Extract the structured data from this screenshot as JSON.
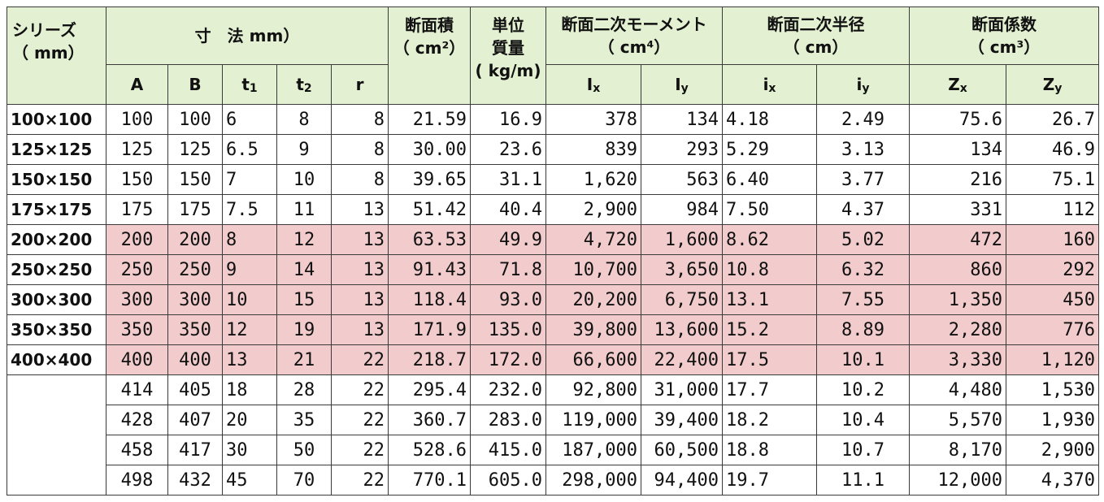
{
  "header": {
    "series_line1": "シリーズ",
    "series_line2": "（ mm）",
    "dimensions": "寸　法 mm）",
    "area_line1": "断面積",
    "area_line2": "（ cm²）",
    "mass_line1": "単位",
    "mass_line2": "質量",
    "mass_line3": "( kg/m)",
    "inertia_line1": "断面二次モーメント",
    "inertia_line2": "（ cm⁴）",
    "radius_line1": "断面二次半径",
    "radius_line2": "（ cm）",
    "modulus_line1": "断面係数",
    "modulus_line2": "（ cm³）",
    "cols": {
      "A": "A",
      "B": "B",
      "t1": "t",
      "t1_sub": "1",
      "t2": "t",
      "t2_sub": "2",
      "r": "r",
      "Ix": "I",
      "Ix_sub": "x",
      "Iy": "I",
      "Iy_sub": "y",
      "ix": "i",
      "ix_sub": "x",
      "iy": "i",
      "iy_sub": "y",
      "Zx": "Z",
      "Zx_sub": "x",
      "Zy": "Z",
      "Zy_sub": "y"
    }
  },
  "rows": [
    {
      "series": "100×100",
      "A": "100",
      "B": "100",
      "t1": "6",
      "t2": "8",
      "r": "8",
      "area": "21.59",
      "mass": "16.9",
      "Ix": "378",
      "Iy": "134",
      "ix": "4.18",
      "iy": "2.49",
      "Zx": "75.6",
      "Zy": "26.7"
    },
    {
      "series": "125×125",
      "A": "125",
      "B": "125",
      "t1": "6.5",
      "t2": "9",
      "r": "8",
      "area": "30.00",
      "mass": "23.6",
      "Ix": "839",
      "Iy": "293",
      "ix": "5.29",
      "iy": "3.13",
      "Zx": "134",
      "Zy": "46.9"
    },
    {
      "series": "150×150",
      "A": "150",
      "B": "150",
      "t1": "7",
      "t2": "10",
      "r": "8",
      "area": "39.65",
      "mass": "31.1",
      "Ix": "1,620",
      "Iy": "563",
      "ix": "6.40",
      "iy": "3.77",
      "Zx": "216",
      "Zy": "75.1"
    },
    {
      "series": "175×175",
      "A": "175",
      "B": "175",
      "t1": "7.5",
      "t2": "11",
      "r": "13",
      "area": "51.42",
      "mass": "40.4",
      "Ix": "2,900",
      "Iy": "984",
      "ix": "7.50",
      "iy": "4.37",
      "Zx": "331",
      "Zy": "112"
    },
    {
      "series": "200×200",
      "A": "200",
      "B": "200",
      "t1": "8",
      "t2": "12",
      "r": "13",
      "area": "63.53",
      "mass": "49.9",
      "Ix": "4,720",
      "Iy": "1,600",
      "ix": "8.62",
      "iy": "5.02",
      "Zx": "472",
      "Zy": "160"
    },
    {
      "series": "250×250",
      "A": "250",
      "B": "250",
      "t1": "9",
      "t2": "14",
      "r": "13",
      "area": "91.43",
      "mass": "71.8",
      "Ix": "10,700",
      "Iy": "3,650",
      "ix": "10.8",
      "iy": "6.32",
      "Zx": "860",
      "Zy": "292"
    },
    {
      "series": "300×300",
      "A": "300",
      "B": "300",
      "t1": "10",
      "t2": "15",
      "r": "13",
      "area": "118.4",
      "mass": "93.0",
      "Ix": "20,200",
      "Iy": "6,750",
      "ix": "13.1",
      "iy": "7.55",
      "Zx": "1,350",
      "Zy": "450"
    },
    {
      "series": "350×350",
      "A": "350",
      "B": "350",
      "t1": "12",
      "t2": "19",
      "r": "13",
      "area": "171.9",
      "mass": "135.0",
      "Ix": "39,800",
      "Iy": "13,600",
      "ix": "15.2",
      "iy": "8.89",
      "Zx": "2,280",
      "Zy": "776"
    },
    {
      "series": "400×400",
      "A": "400",
      "B": "400",
      "t1": "13",
      "t2": "21",
      "r": "22",
      "area": "218.7",
      "mass": "172.0",
      "Ix": "66,600",
      "Iy": "22,400",
      "ix": "17.5",
      "iy": "10.1",
      "Zx": "3,330",
      "Zy": "1,120"
    },
    {
      "series": "",
      "A": "414",
      "B": "405",
      "t1": "18",
      "t2": "28",
      "r": "22",
      "area": "295.4",
      "mass": "232.0",
      "Ix": "92,800",
      "Iy": "31,000",
      "ix": "17.7",
      "iy": "10.2",
      "Zx": "4,480",
      "Zy": "1,530"
    },
    {
      "series": "",
      "A": "428",
      "B": "407",
      "t1": "20",
      "t2": "35",
      "r": "22",
      "area": "360.7",
      "mass": "283.0",
      "Ix": "119,000",
      "Iy": "39,400",
      "ix": "18.2",
      "iy": "10.4",
      "Zx": "5,570",
      "Zy": "1,930"
    },
    {
      "series": "",
      "A": "458",
      "B": "417",
      "t1": "30",
      "t2": "50",
      "r": "22",
      "area": "528.6",
      "mass": "415.0",
      "Ix": "187,000",
      "Iy": "60,500",
      "ix": "18.8",
      "iy": "10.7",
      "Zx": "8,170",
      "Zy": "2,900"
    },
    {
      "series": "",
      "A": "498",
      "B": "432",
      "t1": "45",
      "t2": "70",
      "r": "22",
      "area": "770.1",
      "mass": "605.0",
      "Ix": "298,000",
      "Iy": "94,400",
      "ix": "19.7",
      "iy": "11.1",
      "Zx": "12,000",
      "Zy": "4,370"
    }
  ],
  "highlighted_rows": [
    4,
    5,
    6,
    7,
    8
  ],
  "colors": {
    "header_bg": "#e4f0d2",
    "highlight_bg": "#f2cccd",
    "grid": "#3a3a3a"
  }
}
